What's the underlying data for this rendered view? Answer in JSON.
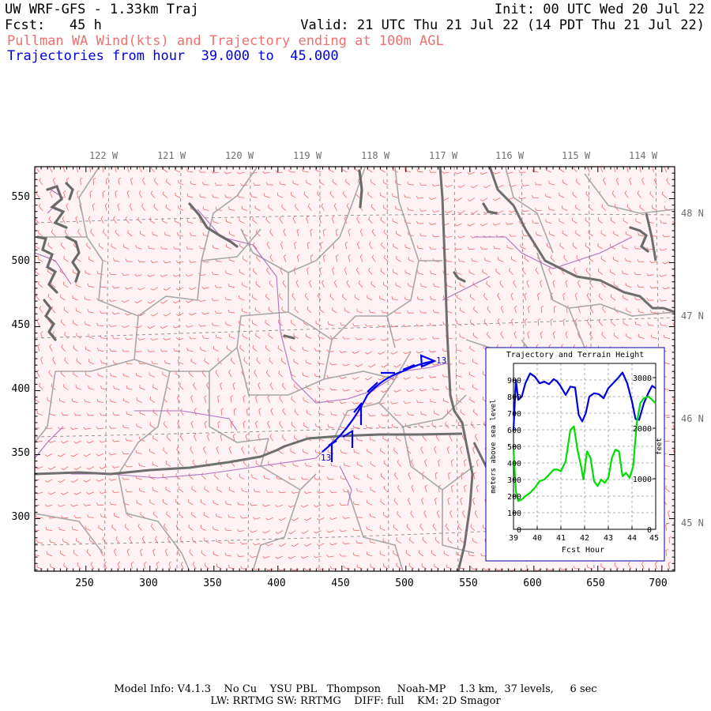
{
  "header": {
    "title": "UW WRF-GFS - 1.33km Traj",
    "init": "Init: 00 UTC Wed 20 Jul 22",
    "fcst": "Fcst:   45 h",
    "valid": "Valid: 21 UTC Thu 21 Jul 22 (14 PDT Thu 21 Jul 22)",
    "field": "Pullman WA Wind(kts) and Trajectory ending at 100m AGL",
    "traj_range": "Trajectories from hour  39.000 to  45.000"
  },
  "map": {
    "lon_labels": [
      "122 W",
      "121 W",
      "120 W",
      "119 W",
      "118 W",
      "117 W",
      "116 W",
      "115 W",
      "114 W"
    ],
    "lat_labels": [
      "48 N",
      "47 N",
      "46 N",
      "45 N"
    ],
    "x_ticks": [
      "250",
      "300",
      "350",
      "400",
      "450",
      "500",
      "550",
      "600",
      "650",
      "700"
    ],
    "y_ticks": [
      "550",
      "500",
      "450",
      "400",
      "350",
      "300"
    ],
    "traj_start_label": "13",
    "traj_end_label": "13",
    "colors": {
      "wind": "#f06a6a",
      "county": "#a8a8a8",
      "state": "#6e6e6e",
      "river": "#b070c0",
      "trajectory": "#0000ee",
      "grid": "#8c8c8c"
    }
  },
  "inset": {
    "title": "Trajectory and Terrain Height",
    "xlabel": "Fcst Hour",
    "ylabel_left": "meters above sea level",
    "ylabel_right": "feet",
    "x_ticks": [
      "39",
      "40",
      "41",
      "42",
      "43",
      "44",
      "45"
    ],
    "y_ticks_m": [
      "0",
      "100",
      "200",
      "300",
      "400",
      "500",
      "600",
      "700",
      "800",
      "900"
    ],
    "y_ticks_ft": [
      "0",
      "1000",
      "2000",
      "3000"
    ]
  },
  "chart_data": {
    "type": "line",
    "title": "Trajectory and Terrain Height",
    "xlabel": "Fcst Hour",
    "ylabel": "meters above sea level",
    "xlim": [
      39,
      45
    ],
    "ylim": [
      0,
      1000
    ],
    "series": [
      {
        "color": "#0000dd",
        "x": [
          39.0,
          39.1,
          39.2,
          39.35,
          39.5,
          39.7,
          39.9,
          40.1,
          40.3,
          40.5,
          40.7,
          40.85,
          41.0,
          41.2,
          41.4,
          41.6,
          41.75,
          41.9,
          42.05,
          42.2,
          42.4,
          42.6,
          42.8,
          43.0,
          43.2,
          43.4,
          43.6,
          43.8,
          44.0,
          44.15,
          44.3,
          44.5,
          44.7,
          44.85,
          45.0
        ],
        "y": [
          600,
          900,
          780,
          800,
          880,
          940,
          920,
          880,
          890,
          875,
          905,
          890,
          860,
          810,
          860,
          855,
          690,
          650,
          700,
          800,
          820,
          815,
          790,
          850,
          880,
          910,
          945,
          880,
          770,
          665,
          660,
          760,
          825,
          865,
          850
        ]
      },
      {
        "color": "#00dd00",
        "x": [
          39.0,
          39.1,
          39.2,
          39.35,
          39.5,
          39.7,
          39.9,
          40.1,
          40.3,
          40.5,
          40.7,
          40.85,
          41.0,
          41.2,
          41.4,
          41.55,
          41.7,
          41.85,
          41.95,
          42.1,
          42.25,
          42.4,
          42.55,
          42.7,
          42.85,
          43.0,
          43.15,
          43.3,
          43.45,
          43.6,
          43.75,
          43.9,
          44.05,
          44.2,
          44.35,
          44.5,
          44.7,
          44.85,
          45.0
        ],
        "y": [
          480,
          230,
          170,
          180,
          200,
          220,
          250,
          290,
          300,
          330,
          360,
          360,
          350,
          410,
          600,
          620,
          480,
          380,
          300,
          470,
          430,
          290,
          260,
          300,
          280,
          310,
          430,
          480,
          470,
          320,
          340,
          310,
          380,
          640,
          760,
          790,
          800,
          780,
          760
        ]
      }
    ]
  },
  "footer": {
    "line1": "Model Info: V4.1.3    No Cu    YSU PBL   Thompson     Noah-MP    1.3 km,  37 levels,     6 sec",
    "line2": "LW: RRTMG SW: RRTMG    DIFF: full    KM: 2D Smagor"
  }
}
